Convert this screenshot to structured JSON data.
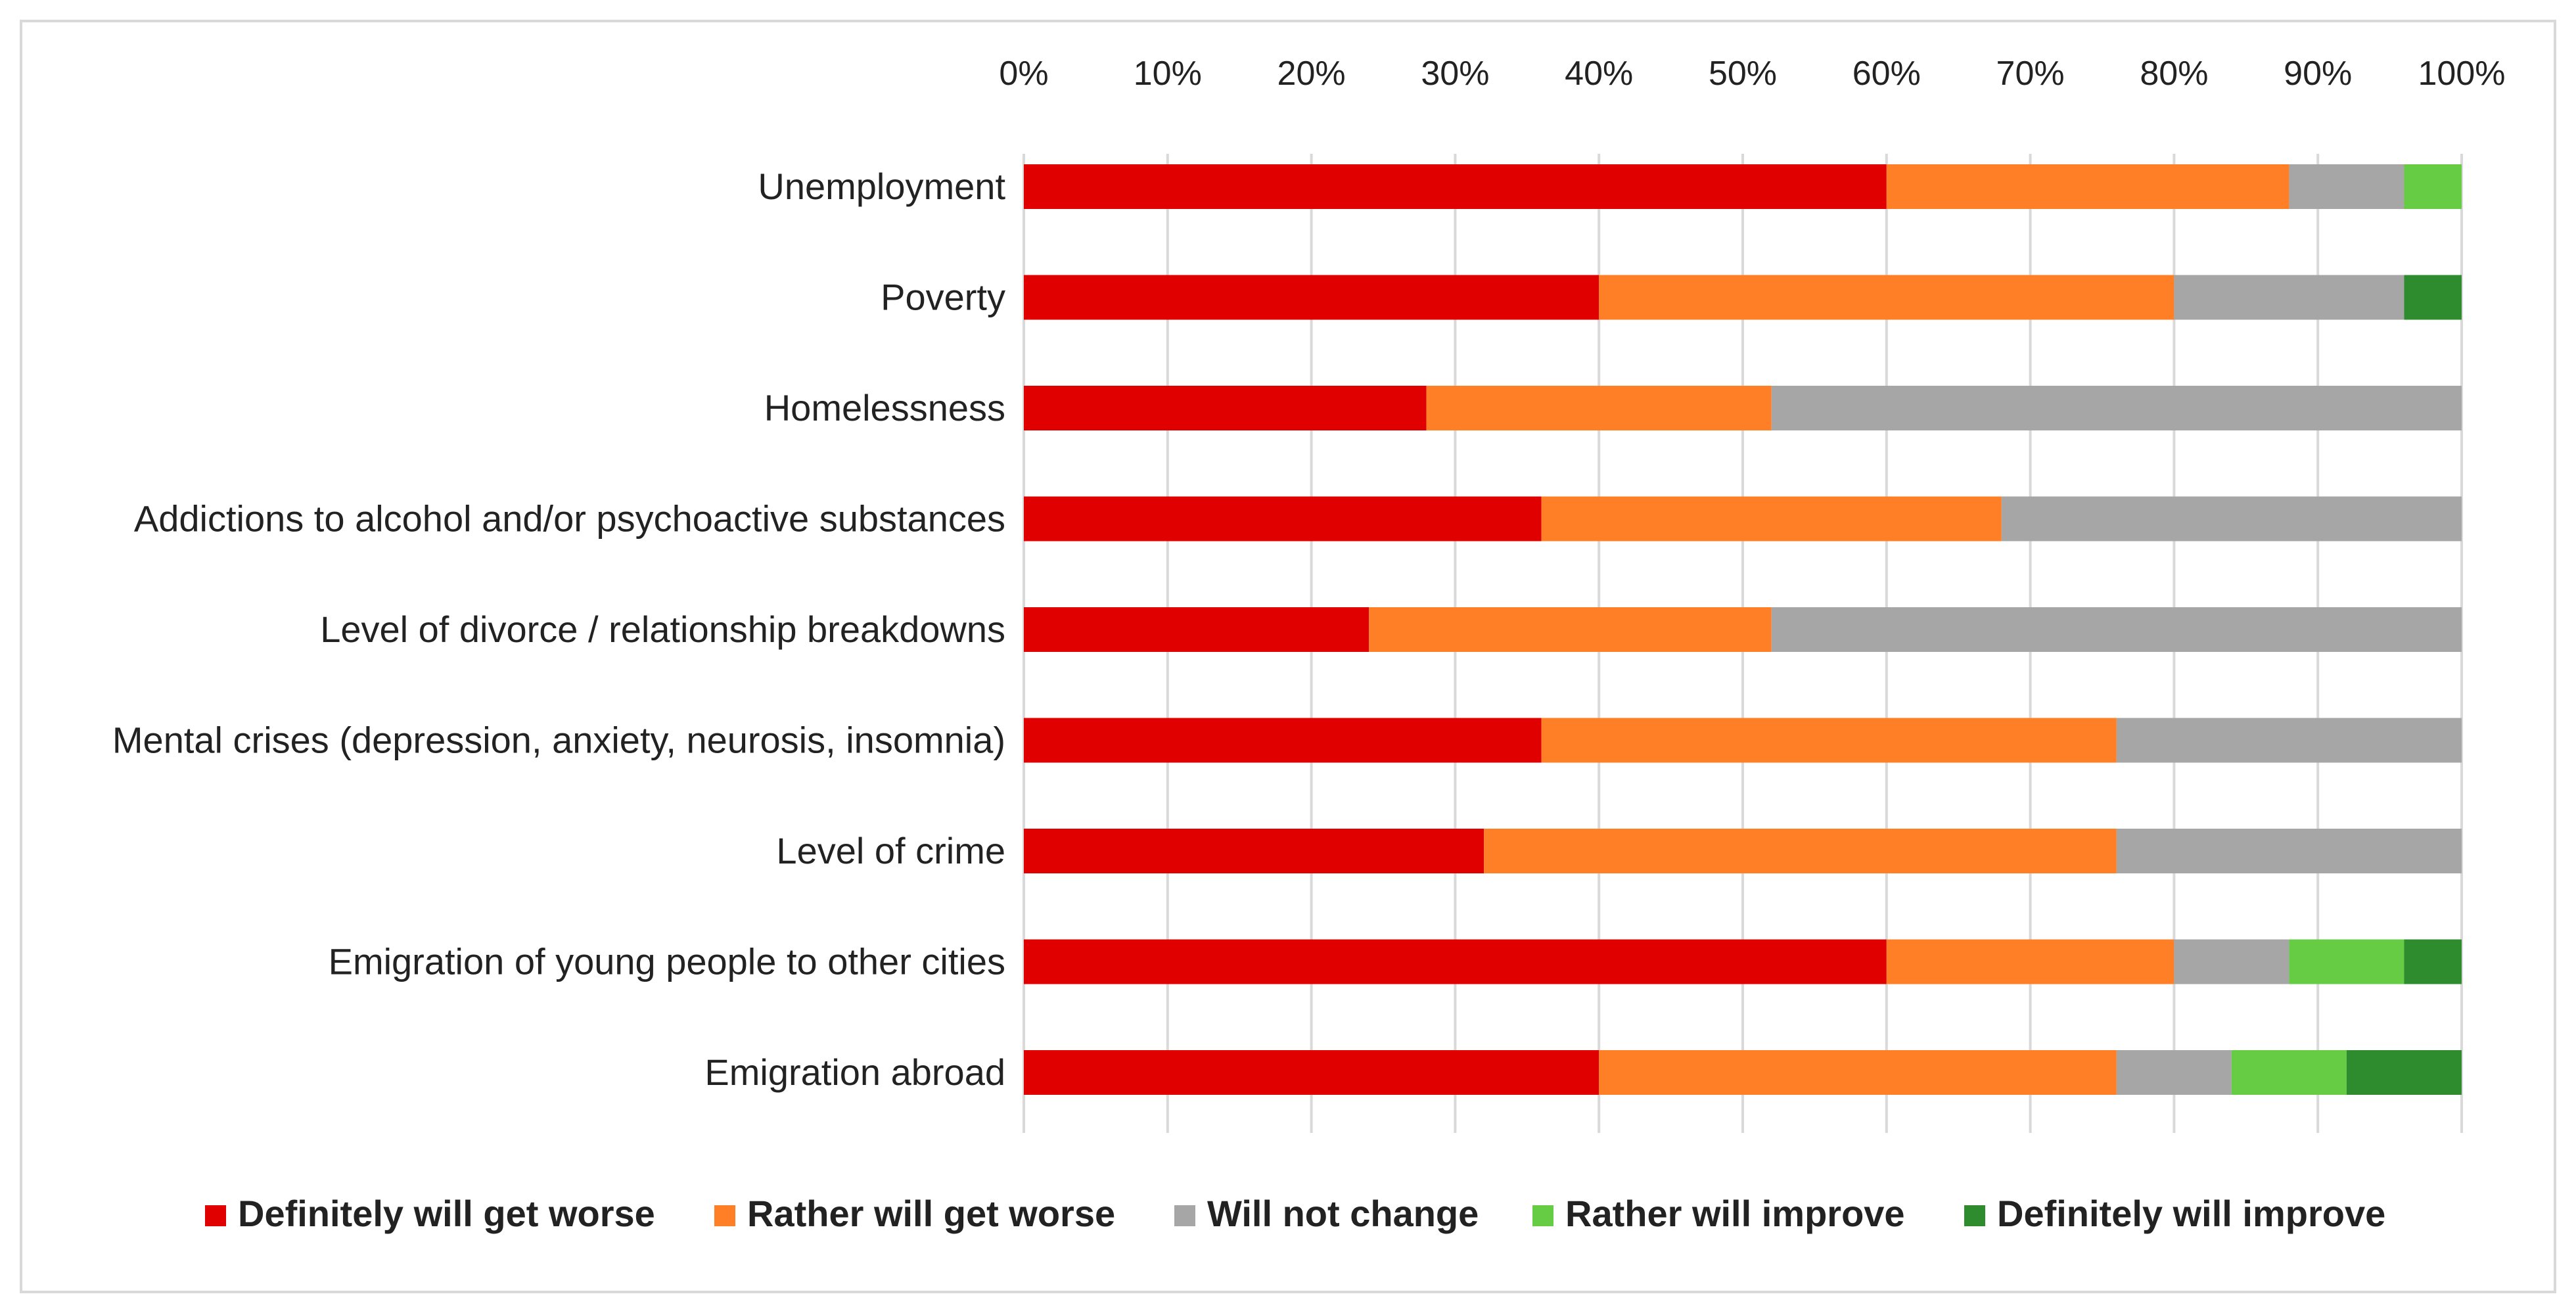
{
  "chart_data": {
    "type": "bar",
    "orientation": "horizontal",
    "stacked": "percent",
    "title": "",
    "xlabel": "",
    "ylabel": "",
    "xlim": [
      0,
      100
    ],
    "x_ticks": [
      "0%",
      "10%",
      "20%",
      "30%",
      "40%",
      "50%",
      "60%",
      "70%",
      "80%",
      "90%",
      "100%"
    ],
    "x_axis_position": "top",
    "grid": true,
    "legend_position": "bottom",
    "categories": [
      "Unemployment",
      "Poverty",
      "Homelessness",
      "Addictions to alcohol and/or psychoactive substances",
      "Level of divorce / relationship breakdowns",
      "Mental crises (depression, anxiety, neurosis, insomnia)",
      "Level of crime",
      "Emigration of young people to other cities",
      "Emigration abroad"
    ],
    "series": [
      {
        "name": "Definitely will get worse",
        "color": "#e00000",
        "values": [
          60,
          40,
          28,
          36,
          24,
          36,
          32,
          60,
          40
        ]
      },
      {
        "name": "Rather will get worse",
        "color": "#ff7f27",
        "values": [
          28,
          40,
          24,
          32,
          28,
          40,
          44,
          20,
          36
        ]
      },
      {
        "name": "Will not change",
        "color": "#a6a6a6",
        "values": [
          8,
          16,
          48,
          32,
          48,
          24,
          24,
          8,
          8
        ]
      },
      {
        "name": "Rather will improve",
        "color": "#66cc44",
        "values": [
          4,
          0,
          0,
          0,
          0,
          0,
          0,
          8,
          8
        ]
      },
      {
        "name": "Definitely will improve",
        "color": "#2e8b2e",
        "values": [
          0,
          4,
          0,
          0,
          0,
          0,
          0,
          4,
          8
        ]
      }
    ]
  }
}
